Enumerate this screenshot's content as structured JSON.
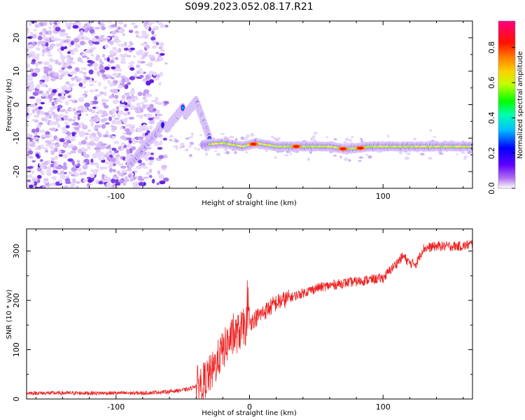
{
  "title": "S099.2023.052.08.17.R21",
  "chart_data": [
    {
      "type": "heatmap",
      "xlabel": "Height of straight line (km)",
      "ylabel": "Frequency (Hz)",
      "xlim": [
        -167,
        167
      ],
      "ylim": [
        -25,
        25
      ],
      "x_ticks": [
        -100,
        0,
        100
      ],
      "y_ticks": [
        -20,
        -10,
        0,
        10,
        20
      ],
      "grid": false,
      "colorbar": {
        "label": "Normalized spectral amplitude",
        "range": [
          0,
          0.95
        ],
        "ticks": [
          "0.0",
          "0.2",
          "0.4",
          "0.6",
          "0.8"
        ],
        "tick_values": [
          0.0,
          0.2,
          0.4,
          0.6,
          0.8
        ],
        "colors": [
          "#ffffff",
          "#8a2be2",
          "#0000ff",
          "#00ffff",
          "#00ff00",
          "#ffff00",
          "#ff8000",
          "#ff0000",
          "#ff0080"
        ]
      },
      "features": {
        "noise_region_x": [
          -167,
          -65
        ],
        "sloped_segments": [
          {
            "x": [
              -90,
              -65
            ],
            "y": [
              -18,
              -6
            ]
          },
          {
            "x": [
              -62,
              -50
            ],
            "y": [
              -7,
              -1
            ]
          },
          {
            "x": [
              -48,
              -40
            ],
            "y": [
              -3,
              1
            ]
          },
          {
            "x": [
              -40,
              -30
            ],
            "y": [
              1,
              -10
            ]
          }
        ],
        "main_line": {
          "x": [
            -35,
            -20,
            -5,
            5,
            20,
            40,
            60,
            70,
            80,
            90,
            110,
            140,
            167
          ],
          "y": [
            -12,
            -11.5,
            -12.5,
            -11.5,
            -12.5,
            -12.5,
            -12.5,
            -13.2,
            -13,
            -12.5,
            -12.5,
            -12.5,
            -12.5
          ]
        },
        "hot_spots": [
          {
            "x": 3,
            "y": -11.8
          },
          {
            "x": 35,
            "y": -12.5
          },
          {
            "x": 70,
            "y": -13.2
          },
          {
            "x": 83,
            "y": -13
          }
        ]
      }
    },
    {
      "type": "line",
      "xlabel": "Height of straight line (km)",
      "ylabel": "SNR (10 * v/v)",
      "xlim": [
        -167,
        167
      ],
      "ylim": [
        0,
        345
      ],
      "x_ticks": [
        -100,
        0,
        100
      ],
      "y_ticks": [
        0,
        100,
        200,
        300
      ],
      "grid": false,
      "color": "#ee2222",
      "series": [
        {
          "x": [
            -167,
            -140,
            -110,
            -80,
            -60,
            -45,
            -35,
            -28,
            -22,
            -15,
            -8,
            0,
            10,
            20,
            30,
            40,
            50,
            60,
            70,
            80,
            90,
            100,
            105,
            110,
            115,
            120,
            125,
            130,
            140,
            150,
            160,
            167
          ],
          "y": [
            12,
            12,
            12,
            12,
            15,
            20,
            35,
            55,
            90,
            120,
            135,
            155,
            175,
            195,
            205,
            215,
            225,
            230,
            235,
            238,
            242,
            245,
            260,
            275,
            290,
            275,
            275,
            305,
            310,
            310,
            310,
            315
          ]
        }
      ]
    }
  ]
}
